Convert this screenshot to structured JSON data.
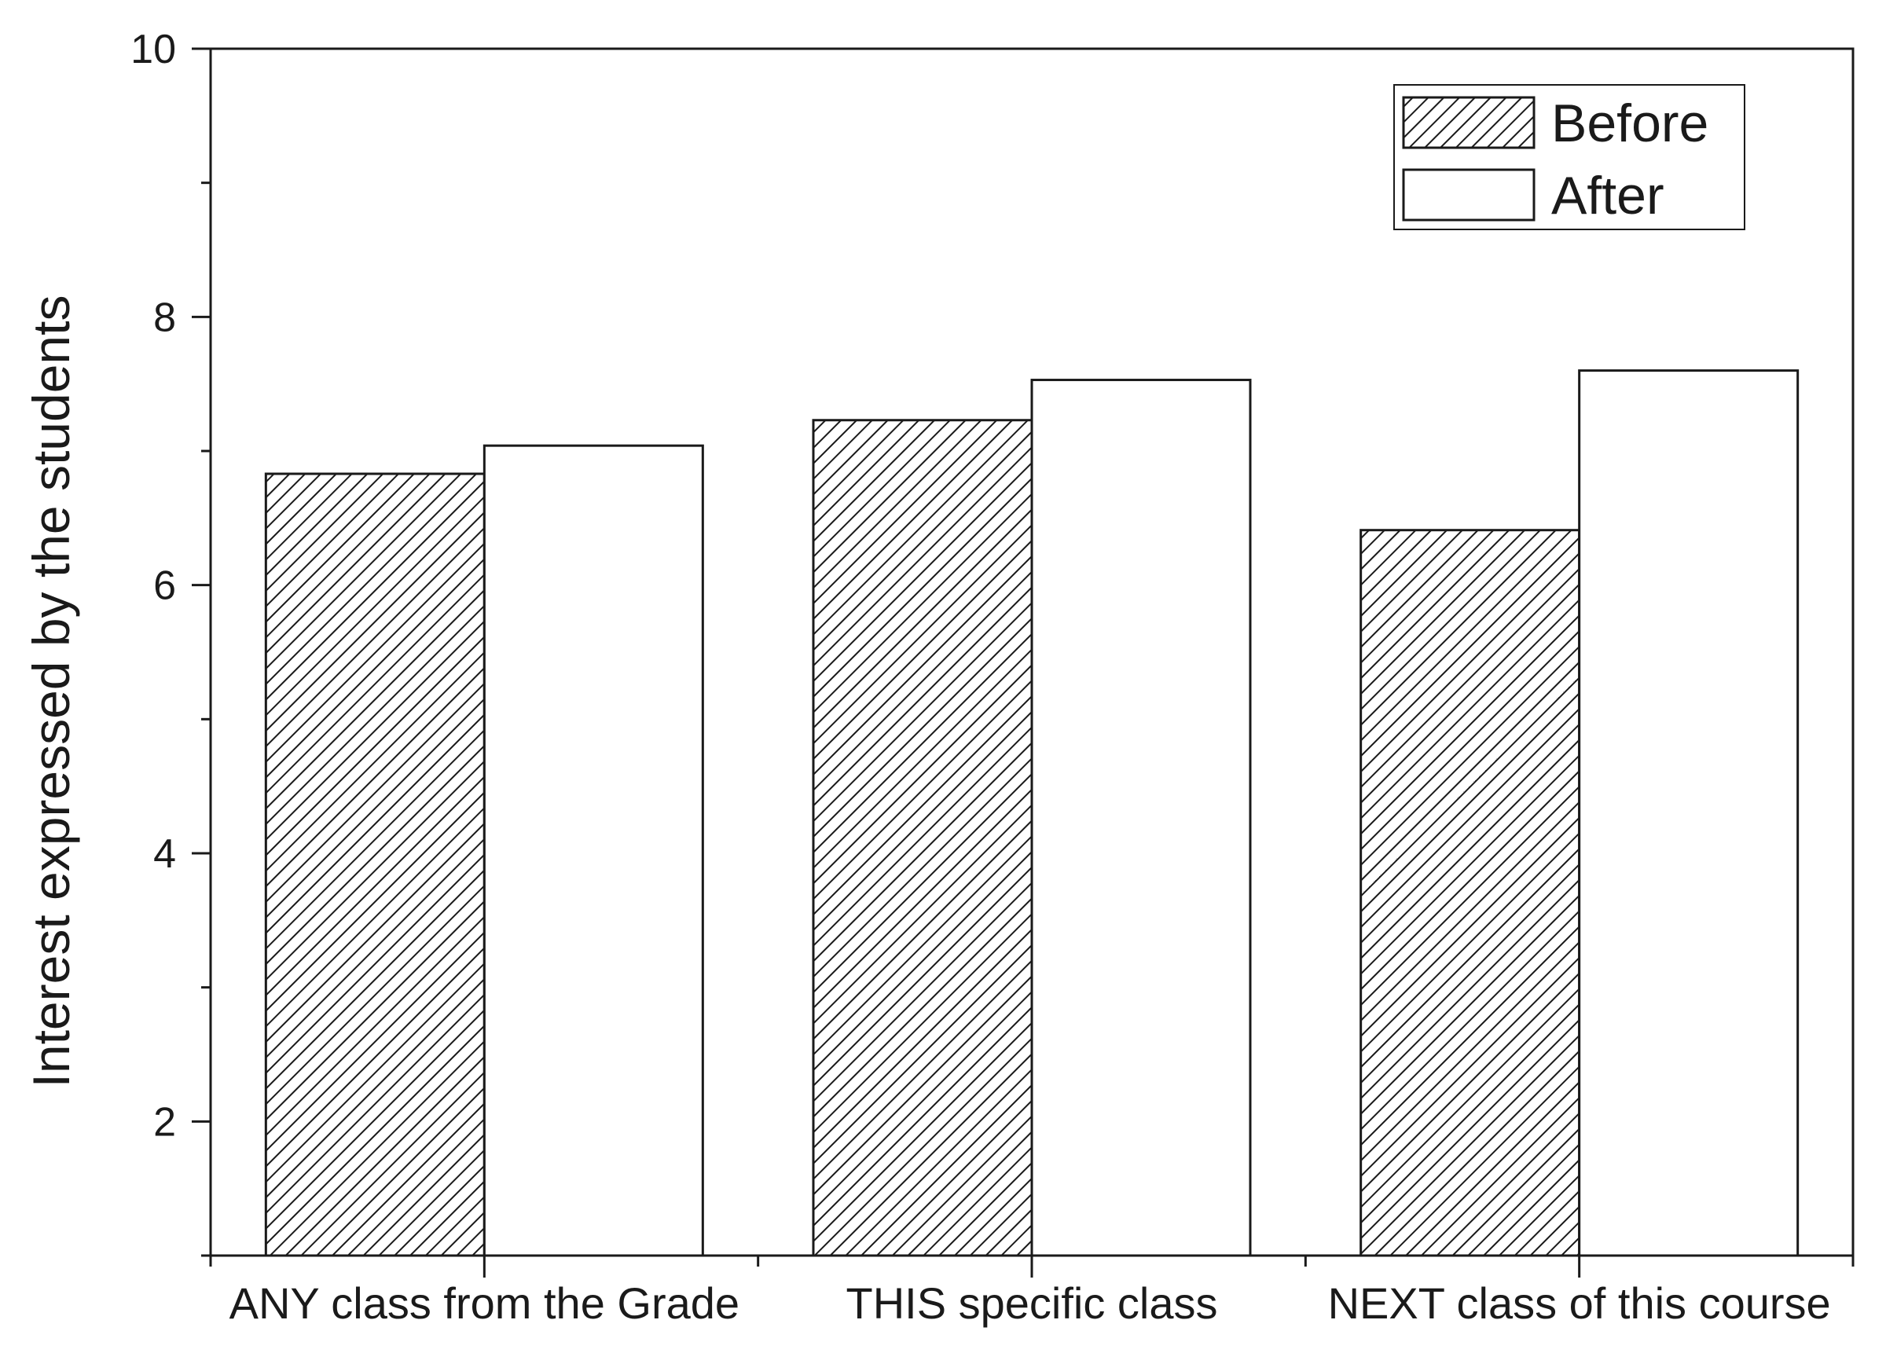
{
  "chart_data": {
    "type": "bar",
    "title": "",
    "xlabel": "",
    "ylabel": "Interest expressed by the students",
    "categories": [
      "ANY class from the Grade",
      "THIS specific class",
      "NEXT class of this course"
    ],
    "series": [
      {
        "name": "Before",
        "values": [
          6.83,
          7.23,
          6.41
        ],
        "fill": "hatched"
      },
      {
        "name": "After",
        "values": [
          7.04,
          7.53,
          7.6
        ],
        "fill": "#ffffff"
      }
    ],
    "ylim": [
      1,
      10
    ],
    "yticks": [
      2,
      4,
      6,
      8,
      10
    ],
    "yminor_ticks": [
      1,
      3,
      5,
      7,
      9
    ],
    "legend": {
      "placement": "top-right"
    },
    "grid": false,
    "colors": {
      "stroke": "#1a1a1a",
      "background": "#ffffff"
    }
  }
}
